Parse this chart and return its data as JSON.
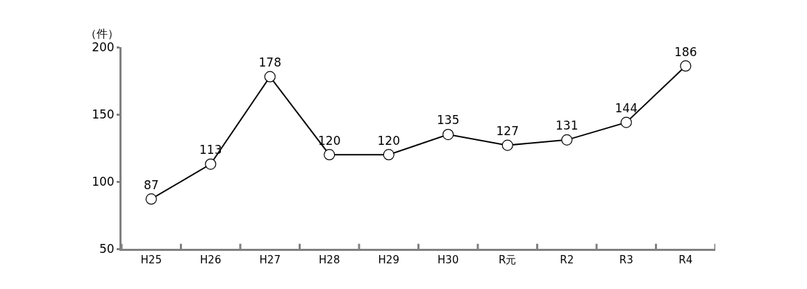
{
  "chart_data": {
    "type": "line",
    "ylabel": "（件）",
    "categories": [
      "H25",
      "H26",
      "H27",
      "H28",
      "H29",
      "H30",
      "R元",
      "R2",
      "R3",
      "R4"
    ],
    "values": [
      87,
      113,
      178,
      120,
      120,
      135,
      127,
      131,
      144,
      186
    ],
    "color": "#000000",
    "marker": "circle",
    "line_style": "solid",
    "data_labels": true,
    "ylim": [
      50,
      200
    ],
    "yticks": [
      50,
      100,
      150,
      200
    ]
  }
}
